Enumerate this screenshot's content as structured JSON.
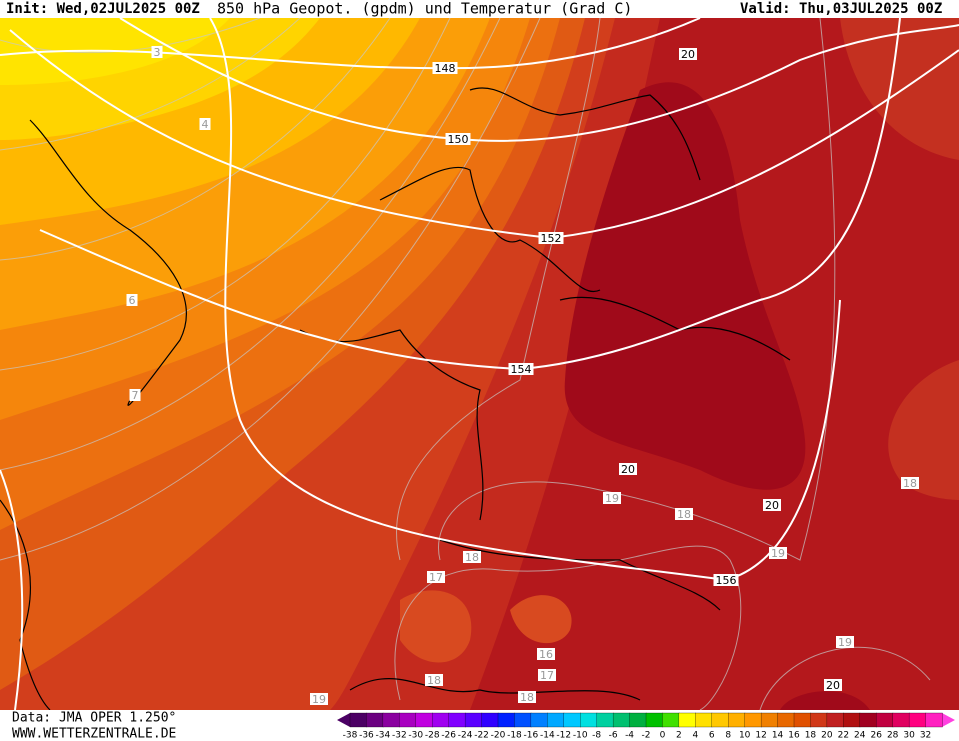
{
  "header": {
    "init": "Init: Wed,02JUL2025 00Z",
    "title": "850 hPa Geopot. (gpdm) und Temperatur (Grad C)",
    "valid": "Valid: Thu,03JUL2025 00Z"
  },
  "map": {
    "geopotential_labels": [
      148,
      150,
      152,
      154,
      156
    ],
    "temperature_labels": [
      3,
      4,
      6,
      7,
      20,
      20,
      20,
      19,
      18,
      19,
      18,
      18,
      17,
      16,
      17,
      18,
      18,
      19,
      19,
      20
    ]
  },
  "footer": {
    "data": "Data: JMA OPER 1.250°",
    "site": "WWW.WETTERZENTRALE.DE"
  },
  "colorbar": {
    "labels": [
      -38,
      -36,
      -34,
      -32,
      -30,
      -28,
      -26,
      -24,
      -22,
      -20,
      -18,
      -16,
      -14,
      -12,
      -10,
      -8,
      -6,
      -4,
      -2,
      0,
      2,
      4,
      6,
      8,
      10,
      12,
      14,
      16,
      18,
      20,
      22,
      24,
      26,
      28,
      30,
      32
    ],
    "colors": [
      "#4b0064",
      "#6a0080",
      "#8a00a0",
      "#a800c0",
      "#c000e0",
      "#a000f0",
      "#8000ff",
      "#5a00ff",
      "#3000ff",
      "#0020ff",
      "#0050ff",
      "#0080ff",
      "#00a8ff",
      "#00c8ff",
      "#00e0e0",
      "#00d0a0",
      "#00c070",
      "#00b040",
      "#00c000",
      "#40e000",
      "#ffff00",
      "#ffe000",
      "#ffc800",
      "#ffb000",
      "#ff9800",
      "#f08000",
      "#e86800",
      "#e05000",
      "#d03818",
      "#c02020",
      "#b01010",
      "#a00020",
      "#c00040",
      "#e00060",
      "#ff0080",
      "#ff20c0"
    ]
  }
}
